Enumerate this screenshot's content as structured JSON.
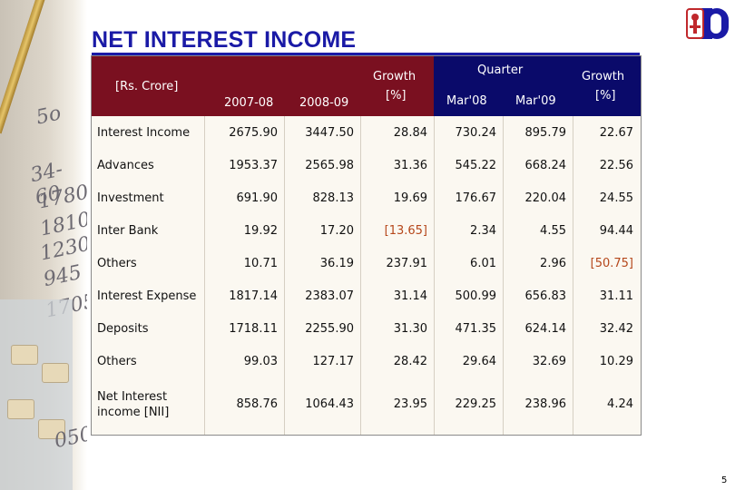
{
  "title": "NET INTEREST INCOME",
  "page_number": "5",
  "header": {
    "unit": "[Rs. Crore]",
    "col_2007": "2007-08",
    "col_2008": "2008-09",
    "growth1_label": "Growth",
    "growth1_unit": "[%]",
    "quarter_label": "Quarter",
    "col_mar08": "Mar'08",
    "col_mar09": "Mar'09",
    "growth2_label": "Growth",
    "growth2_unit": "[%]"
  },
  "rows": [
    {
      "label": "Interest Income",
      "fy0708": "2675.90",
      "fy0809": "3447.50",
      "growth_fy": "28.84",
      "mar08": "730.24",
      "mar09": "895.79",
      "growth_q": "22.67"
    },
    {
      "label": "Advances",
      "fy0708": "1953.37",
      "fy0809": "2565.98",
      "growth_fy": "31.36",
      "mar08": "545.22",
      "mar09": "668.24",
      "growth_q": "22.56"
    },
    {
      "label": "Investment",
      "fy0708": "691.90",
      "fy0809": "828.13",
      "growth_fy": "19.69",
      "mar08": "176.67",
      "mar09": "220.04",
      "growth_q": "24.55"
    },
    {
      "label": "Inter Bank",
      "fy0708": "19.92",
      "fy0809": "17.20",
      "growth_fy": "[13.65]",
      "mar08": "2.34",
      "mar09": "4.55",
      "growth_q": "94.44"
    },
    {
      "label": "Others",
      "fy0708": "10.71",
      "fy0809": "36.19",
      "growth_fy": "237.91",
      "mar08": "6.01",
      "mar09": "2.96",
      "growth_q": "[50.75]"
    },
    {
      "label": "Interest Expense",
      "fy0708": "1817.14",
      "fy0809": "2383.07",
      "growth_fy": "31.14",
      "mar08": "500.99",
      "mar09": "656.83",
      "growth_q": "31.11"
    },
    {
      "label": "Deposits",
      "fy0708": "1718.11",
      "fy0809": "2255.90",
      "growth_fy": "31.30",
      "mar08": "471.35",
      "mar09": "624.14",
      "growth_q": "32.42"
    },
    {
      "label": "Others",
      "fy0708": "99.03",
      "fy0809": "127.17",
      "growth_fy": "28.42",
      "mar08": "29.64",
      "mar09": "32.69",
      "growth_q": "10.29"
    },
    {
      "label_line1": "Net Interest",
      "label_line2": "income [NII]",
      "fy0708": "858.76",
      "fy0809": "1064.43",
      "growth_fy": "23.95",
      "mar08": "229.25",
      "mar09": "238.96",
      "growth_q": "4.24"
    }
  ],
  "colors": {
    "title": "#1a1aa6",
    "header_red": "#7a1020",
    "header_blue": "#0a0a6a",
    "negative": "#b5471b"
  }
}
